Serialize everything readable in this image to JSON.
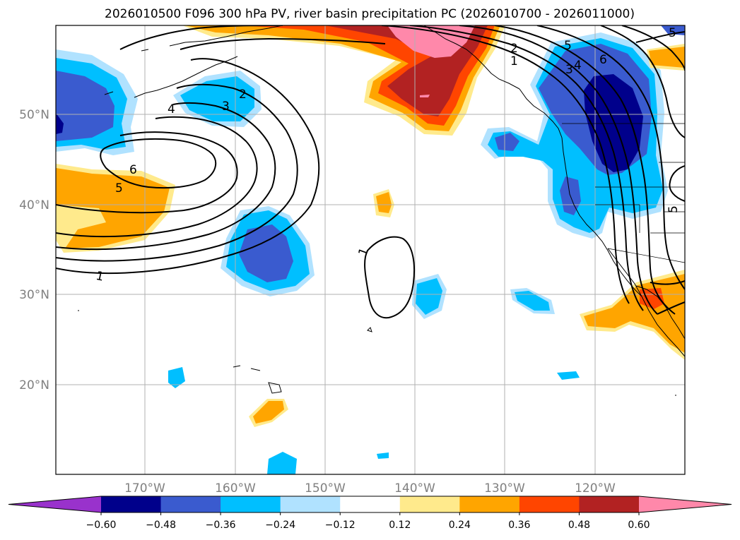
{
  "title": "2026010500 F096 300 hPa PV, river basin precipitation PC (2026010700 - 2026011000)",
  "axes": {
    "lat_labels": [
      "50°N",
      "40°N",
      "30°N",
      "20°N"
    ],
    "lon_labels": [
      "170°W",
      "160°W",
      "150°W",
      "140°W",
      "130°W",
      "120°W"
    ]
  },
  "colorbar": {
    "colors": [
      "#9932cc",
      "#00008b",
      "#3a5bcf",
      "#00bfff",
      "#b0e2ff",
      "#ffffff",
      "#ffea8c",
      "#ffa500",
      "#ff4500",
      "#b22222",
      "#ff88aa"
    ],
    "tick_labels": [
      "−0.60",
      "−0.48",
      "−0.36",
      "−0.24",
      "−0.12",
      "0.12",
      "0.24",
      "0.36",
      "0.48",
      "0.60"
    ]
  },
  "contour_labels": [
    "1",
    "2",
    "3",
    "4",
    "5",
    "6",
    "1",
    "5",
    "2",
    "3",
    "4",
    "5",
    "6",
    "1",
    "5"
  ],
  "palette": {
    "dark_blue": "#00008b",
    "mid_blue": "#3a5bcf",
    "blue": "#00bfff",
    "light_blue": "#b0e2ff",
    "yellow": "#ffea8c",
    "orange": "#ffa500",
    "red_orange": "#ff4500",
    "dark_red": "#b22222",
    "pink": "#ff88aa",
    "grid": "#b0b0b0",
    "contour": "#000000"
  }
}
